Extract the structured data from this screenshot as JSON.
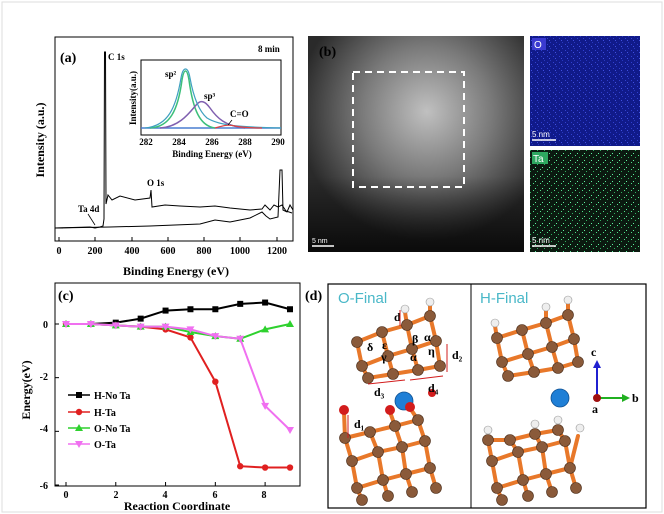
{
  "panels": {
    "a": {
      "label": "(a)",
      "time_label": "8 min",
      "xlabel": "Binding Energy (eV)",
      "ylabel": "Intensity (a.u.)",
      "xticks": [
        "0",
        "200",
        "400",
        "600",
        "800",
        "1000",
        "1200"
      ],
      "peaks": {
        "c1s": "C 1s",
        "o1s": "O 1s",
        "ta4d": "Ta 4d"
      },
      "inset": {
        "ylabel": "Intensity(a.u.)",
        "xlabel": "Binding Energy (eV)",
        "xticks": [
          "282",
          "284",
          "286",
          "288",
          "290"
        ],
        "sp2": "sp²",
        "sp3": "sp³",
        "co": "C=O"
      }
    },
    "b": {
      "label": "(b)",
      "scale_main": "5 nm",
      "map_o_label": "O",
      "map_o_scale": "5 nm",
      "map_ta_label": "Ta",
      "map_ta_scale": "5 nm"
    },
    "c": {
      "label": "(c)",
      "xlabel": "Reaction Coordinate",
      "ylabel": "Energy(eV)",
      "xticks": [
        "0",
        "2",
        "4",
        "6",
        "8"
      ],
      "yticks": [
        "0",
        "-2",
        "-4",
        "-6"
      ]
    },
    "d": {
      "label": "(d)",
      "left_title": "O-Final",
      "right_title": "H-Final",
      "labels": [
        "d",
        "δ",
        "ε",
        "β",
        "α",
        "γ",
        "α",
        "η",
        "d₂",
        "d₃",
        "d₄",
        "d₁"
      ],
      "axes": {
        "c": "c",
        "a": "a",
        "b": "b"
      }
    }
  },
  "chart_data": [
    {
      "type": "line",
      "title": "",
      "xlabel": "Binding Energy (eV)",
      "ylabel": "Intensity (a.u.)",
      "xlim": [
        0,
        1300
      ],
      "annotations": [
        "C 1s",
        "O 1s",
        "Ta 4d",
        "8 min"
      ]
    },
    {
      "type": "line",
      "xlabel": "Reaction Coordinate",
      "ylabel": "Energy(eV)",
      "xlim": [
        0,
        9
      ],
      "ylim": [
        -6,
        0.5
      ],
      "legend_position": "left",
      "series": [
        {
          "name": "H-No Ta",
          "color": "#000000",
          "marker": "square",
          "x": [
            0,
            1,
            2,
            3,
            4,
            5,
            6,
            7,
            8,
            9
          ],
          "y": [
            0,
            0,
            0.05,
            0.2,
            0.5,
            0.55,
            0.55,
            0.75,
            0.8,
            0.55
          ]
        },
        {
          "name": "H-Ta",
          "color": "#e02020",
          "marker": "circle",
          "x": [
            0,
            1,
            2,
            3,
            4,
            5,
            6,
            7,
            8,
            9
          ],
          "y": [
            0,
            0,
            -0.05,
            -0.1,
            -0.2,
            -0.5,
            -2.15,
            -5.3,
            -5.35,
            -5.35
          ]
        },
        {
          "name": "O-No Ta",
          "color": "#2ed12e",
          "marker": "triangle-up",
          "x": [
            0,
            1,
            2,
            3,
            4,
            5,
            6,
            7,
            8,
            9
          ],
          "y": [
            0,
            0,
            -0.05,
            -0.1,
            -0.1,
            -0.3,
            -0.45,
            -0.55,
            -0.2,
            0.0
          ]
        },
        {
          "name": "O-Ta",
          "color": "#f070f0",
          "marker": "triangle-down",
          "x": [
            0,
            1,
            2,
            3,
            4,
            5,
            6,
            7,
            8,
            9
          ],
          "y": [
            0,
            0,
            -0.05,
            -0.1,
            -0.1,
            -0.2,
            -0.45,
            -0.55,
            -3.05,
            -3.95
          ]
        }
      ]
    }
  ]
}
